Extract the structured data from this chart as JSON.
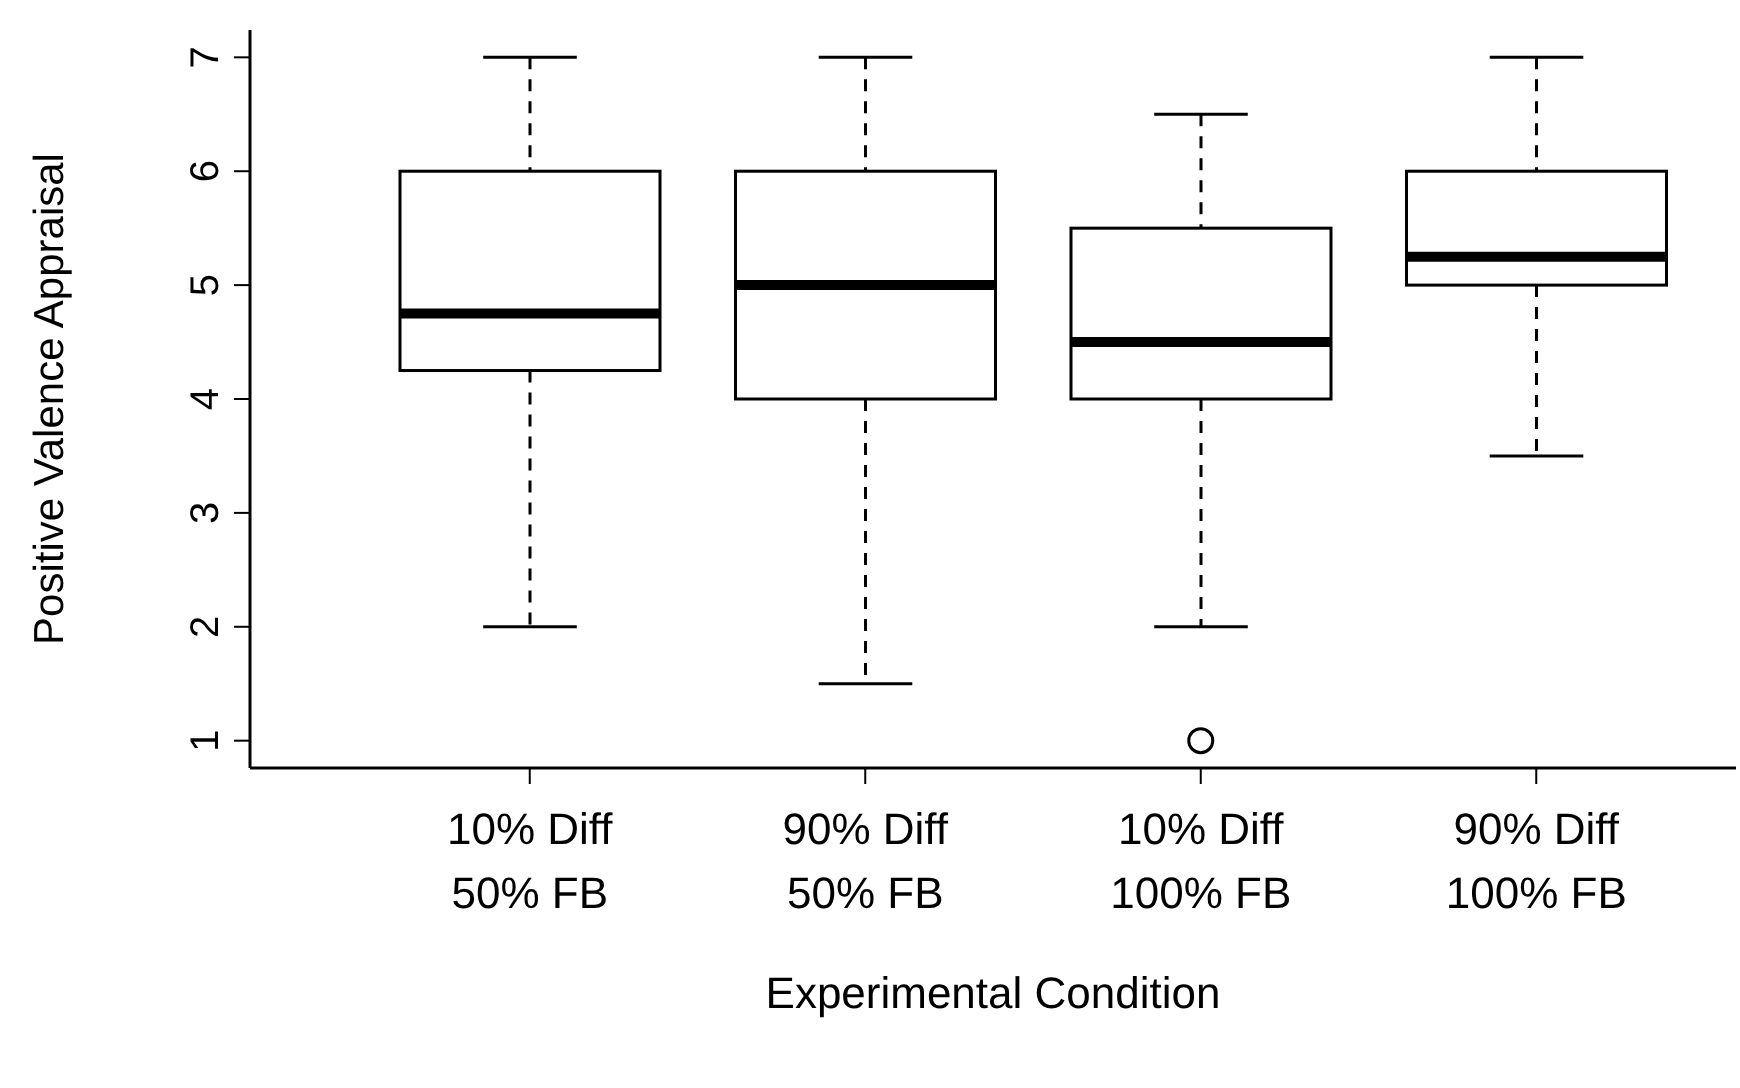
{
  "chart_data": {
    "type": "box",
    "xlabel": "Experimental Condition",
    "ylabel": "Positive Valence Appraisal",
    "categories": [
      "10% Diff\n50% FB",
      "90% Diff\n50% FB",
      "10% Diff\n100% FB",
      "90% Diff\n100% FB"
    ],
    "ylim": [
      0.76,
      7.24
    ],
    "yticks": [
      1,
      2,
      3,
      4,
      5,
      6,
      7
    ],
    "boxes": [
      {
        "low": 2,
        "q1": 4.25,
        "median": 4.75,
        "q3": 6,
        "high": 7
      },
      {
        "low": 1.5,
        "q1": 4,
        "median": 5,
        "q3": 6,
        "high": 7
      },
      {
        "low": 2,
        "q1": 4,
        "median": 4.5,
        "q3": 5.5,
        "high": 6.5,
        "outliers": [
          1
        ]
      },
      {
        "low": 3.5,
        "q1": 5,
        "median": 5.25,
        "q3": 6,
        "high": 7
      }
    ]
  }
}
